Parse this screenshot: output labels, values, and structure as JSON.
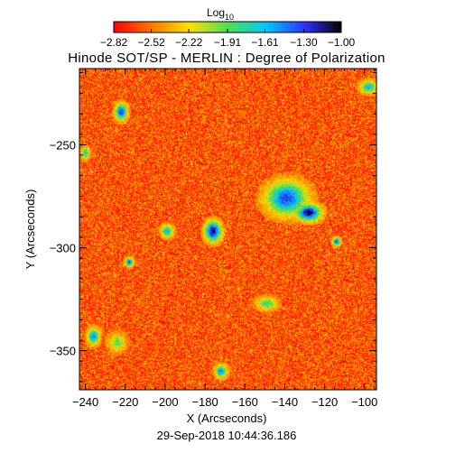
{
  "chart_data": {
    "type": "heatmap",
    "title": "Hinode SOT/SP - MERLIN : Degree of Polarization",
    "xlabel": "X (Arcseconds)",
    "ylabel": "Y (Arcseconds)",
    "xlim": [
      -243,
      -94
    ],
    "ylim": [
      -369,
      -213
    ],
    "x_ticks": [
      -240,
      -220,
      -200,
      -180,
      -160,
      -140,
      -120,
      -100
    ],
    "y_ticks": [
      -250,
      -300,
      -350
    ],
    "x_tick_labels": [
      "−240",
      "−220",
      "−200",
      "−180",
      "−160",
      "−140",
      "−120",
      "−100"
    ],
    "y_tick_labels": [
      "−250",
      "−300",
      "−350"
    ],
    "colorbar": {
      "label_base": "Log",
      "label_sub": "10",
      "range": [
        -2.82,
        -1.0
      ],
      "ticks": [
        -2.82,
        -2.52,
        -2.22,
        -1.91,
        -1.61,
        -1.3,
        -1.0
      ],
      "tick_labels": [
        "−2.82",
        "−2.52",
        "−2.22",
        "−1.91",
        "−1.61",
        "−1.30",
        "−1.00"
      ]
    },
    "background_level": -2.6,
    "strong_regions": [
      {
        "x": -139,
        "y": -276,
        "rx": 10,
        "ry": 8,
        "level": -1.3
      },
      {
        "x": -128,
        "y": -283,
        "rx": 6,
        "ry": 4,
        "level": -1.05
      },
      {
        "x": -176,
        "y": -292,
        "rx": 4,
        "ry": 5,
        "level": -1.1
      },
      {
        "x": -222,
        "y": -234,
        "rx": 3,
        "ry": 4,
        "level": -1.3
      },
      {
        "x": -199,
        "y": -292,
        "rx": 3,
        "ry": 3,
        "level": -1.6
      },
      {
        "x": -218,
        "y": -307,
        "rx": 2,
        "ry": 2,
        "level": -1.3
      },
      {
        "x": -114,
        "y": -297,
        "rx": 2,
        "ry": 2,
        "level": -1.3
      },
      {
        "x": -236,
        "y": -343,
        "rx": 3,
        "ry": 4,
        "level": -1.5
      },
      {
        "x": -172,
        "y": -360,
        "rx": 3,
        "ry": 3,
        "level": -1.5
      },
      {
        "x": -149,
        "y": -327,
        "rx": 5,
        "ry": 3,
        "level": -1.8
      },
      {
        "x": -224,
        "y": -346,
        "rx": 4,
        "ry": 4,
        "level": -1.9
      },
      {
        "x": -98,
        "y": -222,
        "rx": 4,
        "ry": 3,
        "level": -1.6
      },
      {
        "x": -240,
        "y": -254,
        "rx": 2,
        "ry": 3,
        "level": -1.7
      }
    ],
    "timestamp": "29-Sep-2018 10:44:36.186"
  }
}
